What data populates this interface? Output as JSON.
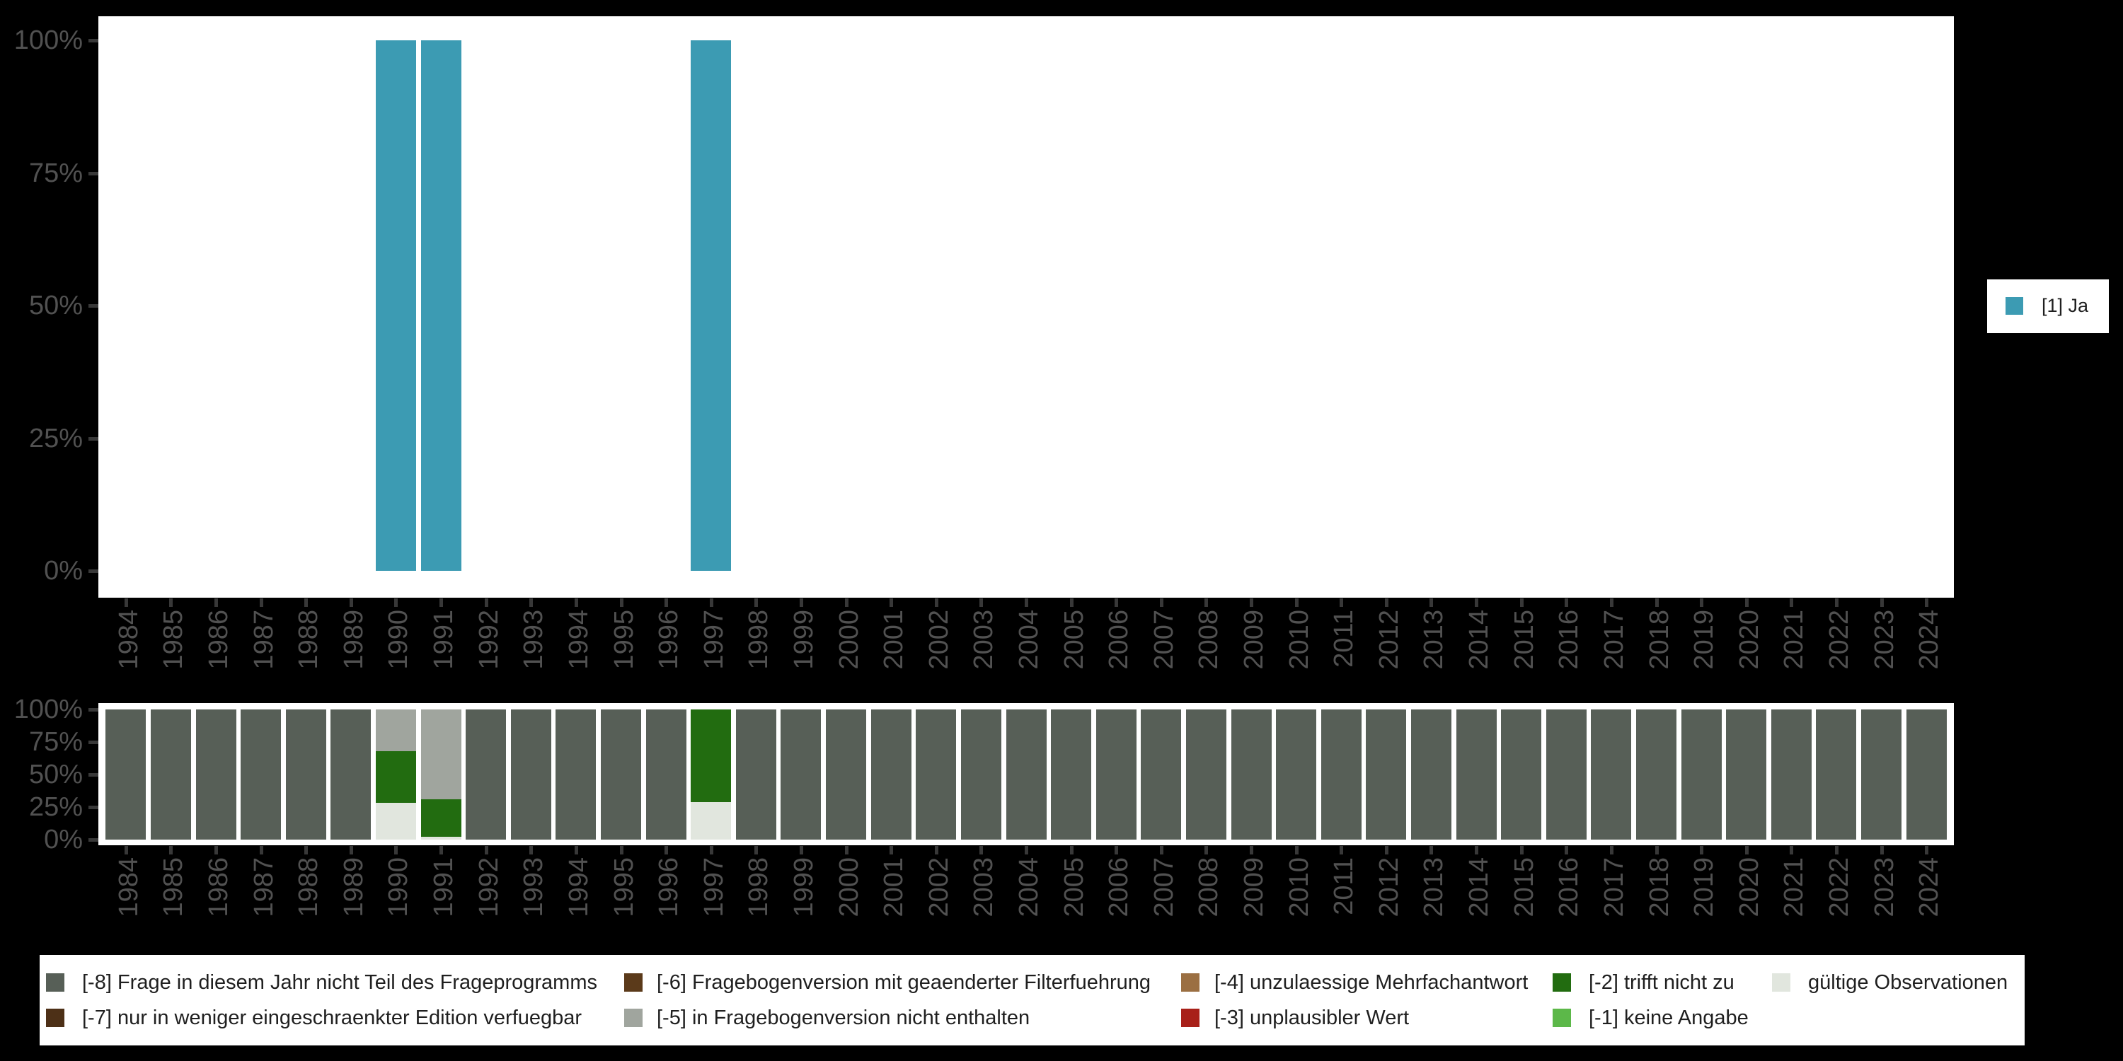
{
  "page": {
    "background": "#000000",
    "plot_background": "#ffffff"
  },
  "colors": {
    "ja_teal": "#3c9bb3",
    "code_m8_gray": "#575f57",
    "code_m7_darkbrown": "#4d3017",
    "code_m6_brown": "#5b3a1a",
    "code_m5_silver": "#a0a59e",
    "code_m4_tan": "#9b6f42",
    "code_m3_red": "#a82019",
    "code_m2_darkgreen": "#226c10",
    "code_m1_lightgreen": "#5cb849",
    "valid_offwhite": "#e1e6de",
    "axis_text": "#515151",
    "tick": "#383838",
    "legend_text": "#1f1f1f"
  },
  "chart_data": [
    {
      "type": "bar",
      "stacked": false,
      "title": "",
      "xlabel": "",
      "ylabel": "",
      "ylim": [
        0,
        100
      ],
      "grid": false,
      "legend_position": "right",
      "ytick_labels": [
        "0%",
        "25%",
        "50%",
        "75%",
        "100%"
      ],
      "categories": [
        "1984",
        "1985",
        "1986",
        "1987",
        "1988",
        "1989",
        "1990",
        "1991",
        "1992",
        "1993",
        "1994",
        "1995",
        "1996",
        "1997",
        "1998",
        "1999",
        "2000",
        "2001",
        "2002",
        "2003",
        "2004",
        "2005",
        "2006",
        "2007",
        "2008",
        "2009",
        "2010",
        "2011",
        "2012",
        "2013",
        "2014",
        "2015",
        "2016",
        "2017",
        "2018",
        "2019",
        "2020",
        "2021",
        "2022",
        "2023",
        "2024"
      ],
      "series": [
        {
          "name": "[1] Ja",
          "color": "#3c9bb3",
          "values": [
            0,
            0,
            0,
            0,
            0,
            0,
            100,
            100,
            0,
            0,
            0,
            0,
            0,
            100,
            0,
            0,
            0,
            0,
            0,
            0,
            0,
            0,
            0,
            0,
            0,
            0,
            0,
            0,
            0,
            0,
            0,
            0,
            0,
            0,
            0,
            0,
            0,
            0,
            0,
            0,
            0
          ]
        }
      ]
    },
    {
      "type": "bar",
      "stacked": true,
      "title": "",
      "xlabel": "",
      "ylabel": "",
      "ylim": [
        0,
        100
      ],
      "grid": false,
      "legend_position": "bottom",
      "ytick_labels": [
        "0%",
        "25%",
        "50%",
        "75%",
        "100%"
      ],
      "categories": [
        "1984",
        "1985",
        "1986",
        "1987",
        "1988",
        "1989",
        "1990",
        "1991",
        "1992",
        "1993",
        "1994",
        "1995",
        "1996",
        "1997",
        "1998",
        "1999",
        "2000",
        "2001",
        "2002",
        "2003",
        "2004",
        "2005",
        "2006",
        "2007",
        "2008",
        "2009",
        "2010",
        "2011",
        "2012",
        "2013",
        "2014",
        "2015",
        "2016",
        "2017",
        "2018",
        "2019",
        "2020",
        "2021",
        "2022",
        "2023",
        "2024"
      ],
      "series": [
        {
          "name": "gültige Observationen",
          "color": "#e1e6de",
          "values": [
            0,
            0,
            0,
            0,
            0,
            0,
            28,
            2,
            0,
            0,
            0,
            0,
            0,
            29,
            0,
            0,
            0,
            0,
            0,
            0,
            0,
            0,
            0,
            0,
            0,
            0,
            0,
            0,
            0,
            0,
            0,
            0,
            0,
            0,
            0,
            0,
            0,
            0,
            0,
            0,
            0
          ]
        },
        {
          "name": "[-1] keine Angabe",
          "color": "#5cb849",
          "values": [
            0,
            0,
            0,
            0,
            0,
            0,
            0,
            0,
            0,
            0,
            0,
            0,
            0,
            0,
            0,
            0,
            0,
            0,
            0,
            0,
            0,
            0,
            0,
            0,
            0,
            0,
            0,
            0,
            0,
            0,
            0,
            0,
            0,
            0,
            0,
            0,
            0,
            0,
            0,
            0,
            0
          ]
        },
        {
          "name": "[-2] trifft nicht zu",
          "color": "#226c10",
          "values": [
            0,
            0,
            0,
            0,
            0,
            0,
            40,
            29,
            0,
            0,
            0,
            0,
            0,
            71,
            0,
            0,
            0,
            0,
            0,
            0,
            0,
            0,
            0,
            0,
            0,
            0,
            0,
            0,
            0,
            0,
            0,
            0,
            0,
            0,
            0,
            0,
            0,
            0,
            0,
            0,
            0
          ]
        },
        {
          "name": "[-3] unplausibler Wert",
          "color": "#a82019",
          "values": [
            0,
            0,
            0,
            0,
            0,
            0,
            0,
            0,
            0,
            0,
            0,
            0,
            0,
            0,
            0,
            0,
            0,
            0,
            0,
            0,
            0,
            0,
            0,
            0,
            0,
            0,
            0,
            0,
            0,
            0,
            0,
            0,
            0,
            0,
            0,
            0,
            0,
            0,
            0,
            0,
            0
          ]
        },
        {
          "name": "[-4] unzulaessige Mehrfachantwort",
          "color": "#9b6f42",
          "values": [
            0,
            0,
            0,
            0,
            0,
            0,
            0,
            0,
            0,
            0,
            0,
            0,
            0,
            0,
            0,
            0,
            0,
            0,
            0,
            0,
            0,
            0,
            0,
            0,
            0,
            0,
            0,
            0,
            0,
            0,
            0,
            0,
            0,
            0,
            0,
            0,
            0,
            0,
            0,
            0,
            0
          ]
        },
        {
          "name": "[-5] in Fragebogenversion nicht enthalten",
          "color": "#a0a59e",
          "values": [
            0,
            0,
            0,
            0,
            0,
            0,
            32,
            69,
            0,
            0,
            0,
            0,
            0,
            0,
            0,
            0,
            0,
            0,
            0,
            0,
            0,
            0,
            0,
            0,
            0,
            0,
            0,
            0,
            0,
            0,
            0,
            0,
            0,
            0,
            0,
            0,
            0,
            0,
            0,
            0,
            0
          ]
        },
        {
          "name": "[-6] Fragebogenversion mit geaenderter Filterfuehrung",
          "color": "#5b3a1a",
          "values": [
            0,
            0,
            0,
            0,
            0,
            0,
            0,
            0,
            0,
            0,
            0,
            0,
            0,
            0,
            0,
            0,
            0,
            0,
            0,
            0,
            0,
            0,
            0,
            0,
            0,
            0,
            0,
            0,
            0,
            0,
            0,
            0,
            0,
            0,
            0,
            0,
            0,
            0,
            0,
            0,
            0
          ]
        },
        {
          "name": "[-7] nur in weniger eingeschraenkter Edition verfuegbar",
          "color": "#4d3017",
          "values": [
            0,
            0,
            0,
            0,
            0,
            0,
            0,
            0,
            0,
            0,
            0,
            0,
            0,
            0,
            0,
            0,
            0,
            0,
            0,
            0,
            0,
            0,
            0,
            0,
            0,
            0,
            0,
            0,
            0,
            0,
            0,
            0,
            0,
            0,
            0,
            0,
            0,
            0,
            0,
            0,
            0
          ]
        },
        {
          "name": "[-8] Frage in diesem Jahr nicht Teil des Frageprogramms",
          "color": "#575f57",
          "values": [
            100,
            100,
            100,
            100,
            100,
            100,
            0,
            0,
            100,
            100,
            100,
            100,
            100,
            0,
            100,
            100,
            100,
            100,
            100,
            100,
            100,
            100,
            100,
            100,
            100,
            100,
            100,
            100,
            100,
            100,
            100,
            100,
            100,
            100,
            100,
            100,
            100,
            100,
            100,
            100,
            100
          ]
        }
      ],
      "legend_columns": [
        [
          {
            "label": "[-8] Frage in diesem Jahr nicht Teil des Frageprogramms",
            "color": "#575f57"
          },
          {
            "label": "[-7] nur in weniger eingeschraenkter Edition verfuegbar",
            "color": "#4d3017"
          }
        ],
        [
          {
            "label": "[-6] Fragebogenversion mit geaenderter Filterfuehrung",
            "color": "#5b3a1a"
          },
          {
            "label": "[-5] in Fragebogenversion nicht enthalten",
            "color": "#a0a59e"
          }
        ],
        [
          {
            "label": "[-4] unzulaessige Mehrfachantwort",
            "color": "#9b6f42"
          },
          {
            "label": "[-3] unplausibler Wert",
            "color": "#a82019"
          }
        ],
        [
          {
            "label": "[-2] trifft nicht zu",
            "color": "#226c10"
          },
          {
            "label": "[-1] keine Angabe",
            "color": "#5cb849"
          }
        ],
        [
          {
            "label": "gültige Observationen",
            "color": "#e1e6de"
          }
        ]
      ]
    }
  ]
}
